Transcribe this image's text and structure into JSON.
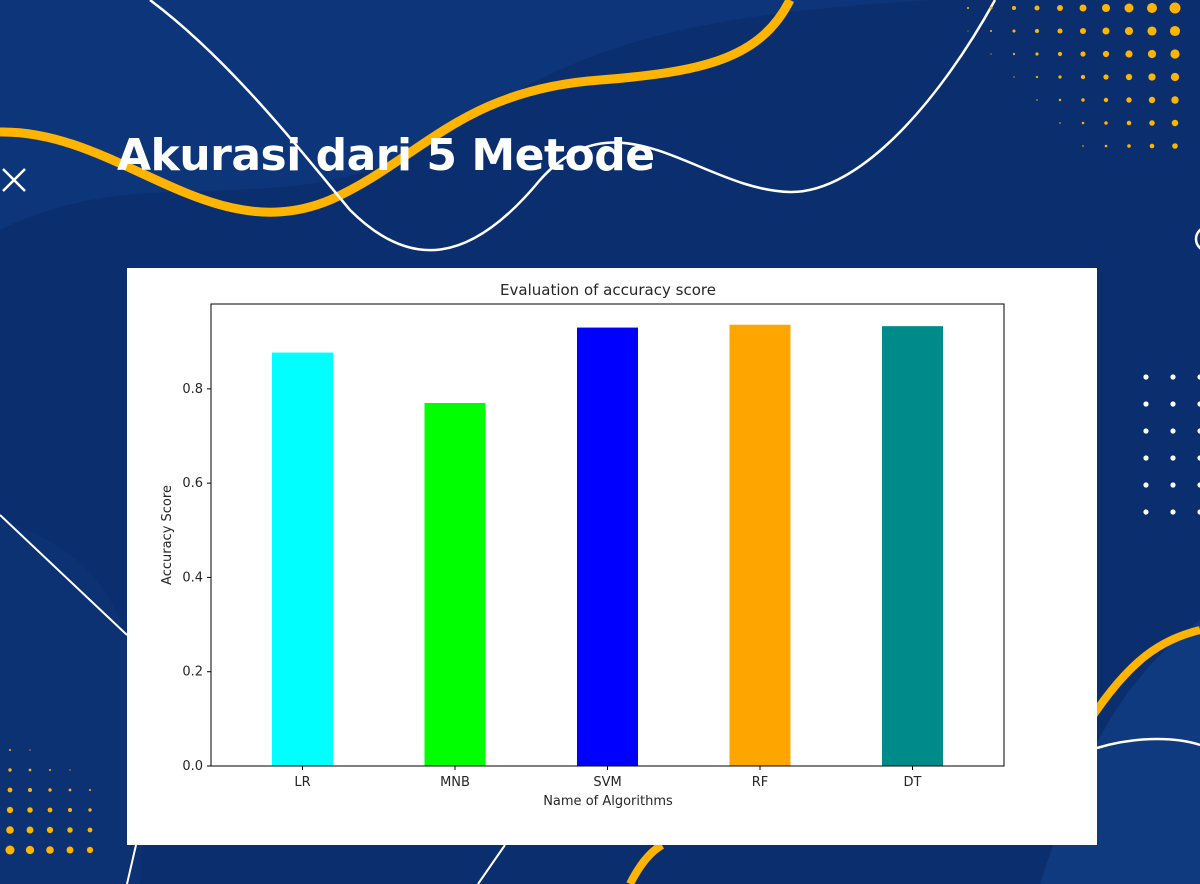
{
  "slide": {
    "title": "Akurasi dari 5 Metode"
  },
  "theme": {
    "background": "#0b2f6e",
    "accent": "#ffb400",
    "line": "#ffffff"
  },
  "chart_data": {
    "type": "bar",
    "title": "Evaluation of accuracy score",
    "xlabel": "Name of Algorithms",
    "ylabel": "Accuracy Score",
    "categories": [
      "LR",
      "MNB",
      "SVM",
      "RF",
      "DT"
    ],
    "values": [
      0.877,
      0.77,
      0.93,
      0.936,
      0.933
    ],
    "colors": [
      "#00ffff",
      "#00ff00",
      "#0000ff",
      "#ffa500",
      "#008b8b"
    ],
    "ylim": [
      0,
      0.98
    ],
    "yticks": [
      0.0,
      0.2,
      0.4,
      0.6,
      0.8
    ],
    "ytick_labels": [
      "0.0",
      "0.2",
      "0.4",
      "0.6",
      "0.8"
    ],
    "grid": false,
    "legend": "none"
  }
}
